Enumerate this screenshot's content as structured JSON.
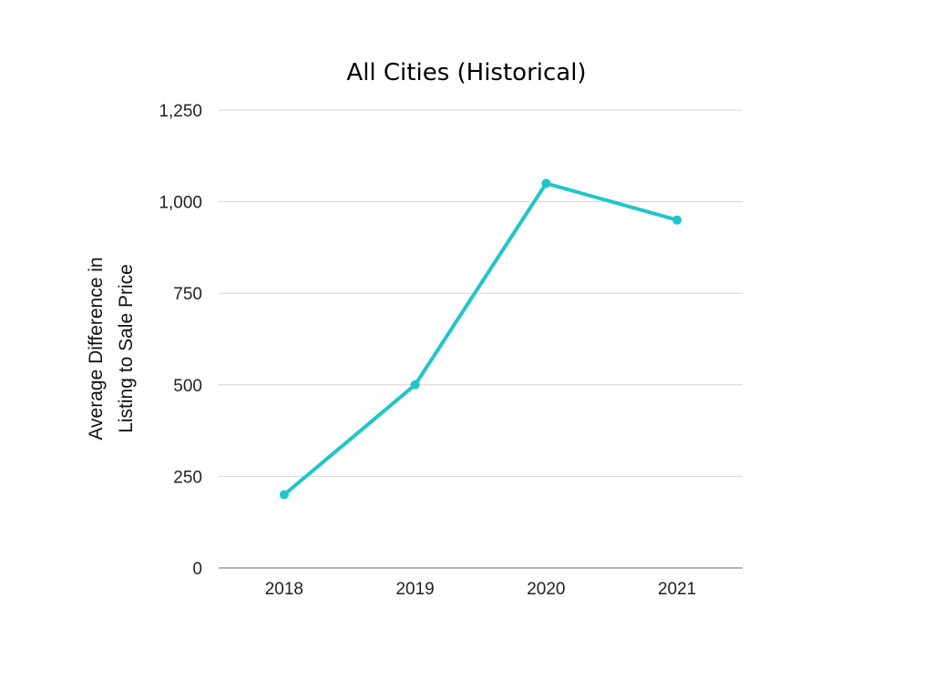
{
  "chart_data": {
    "type": "line",
    "title": "All Cities (Historical)",
    "ylabel_lines": [
      "Average Difference in",
      "Listing to Sale Price"
    ],
    "xlabel": "",
    "categories": [
      "2018",
      "2019",
      "2020",
      "2021"
    ],
    "series": [
      {
        "values": [
          200,
          500,
          1050,
          950
        ],
        "color": "#1ec6c9"
      }
    ],
    "ylim": [
      0,
      1250
    ],
    "yticks": [
      0,
      250,
      500,
      750,
      1000,
      1250
    ],
    "ytick_labels": [
      "0",
      "250",
      "500",
      "750",
      "1,000",
      "1,250"
    ],
    "grid": true,
    "legend": "none"
  }
}
